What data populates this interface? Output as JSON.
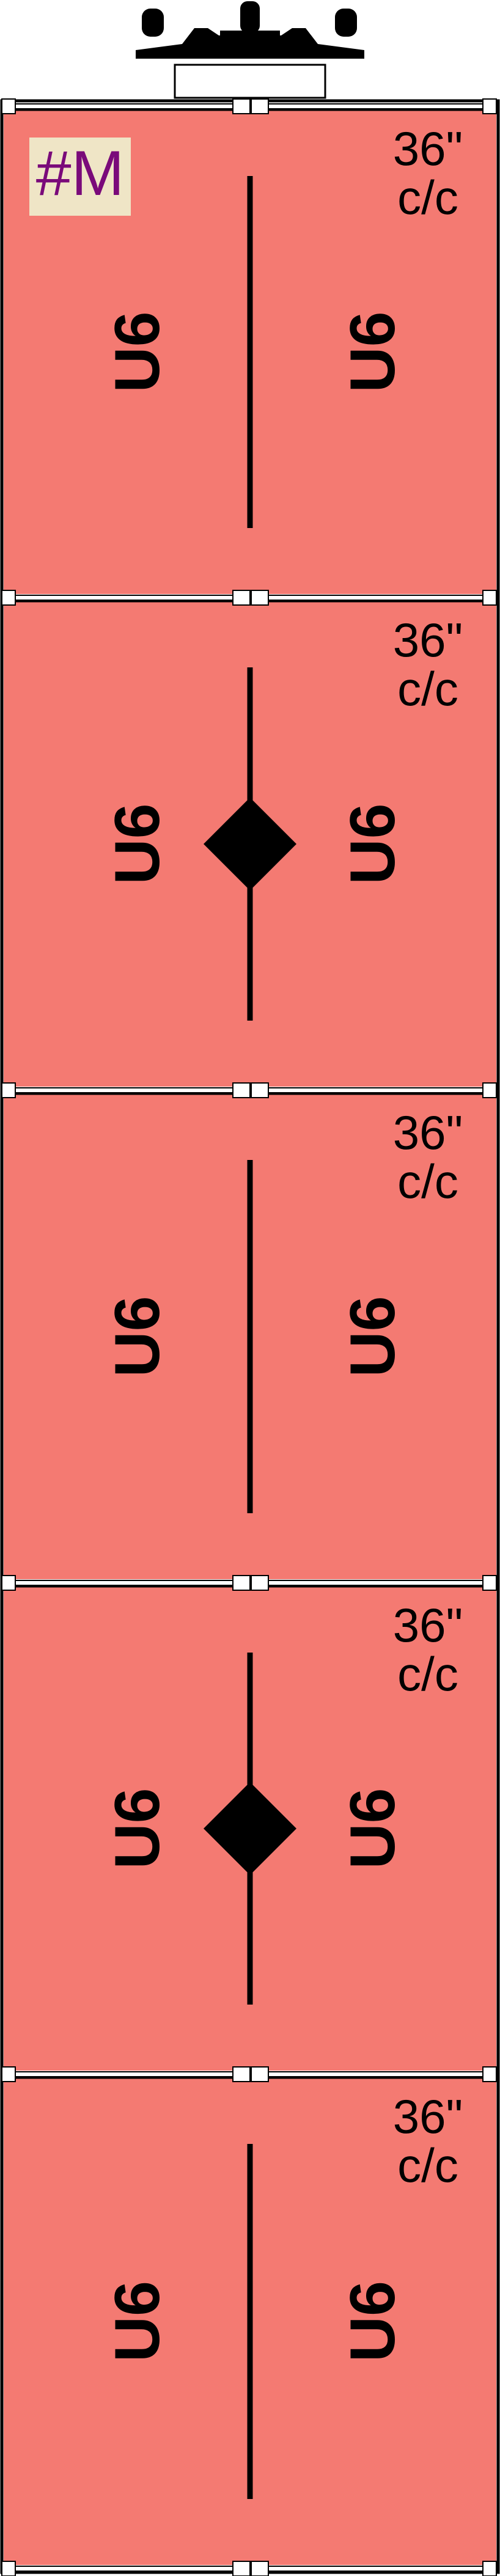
{
  "diagram": {
    "marker_label": "#M",
    "colors": {
      "panel_fill": "#f47a72",
      "outline": "#000000",
      "marker_fill": "#efe5c6",
      "marker_text": "#7a0a7a",
      "divider_fill": "#ffffff"
    },
    "panels": [
      {
        "spacing_line1": "36\"",
        "spacing_line2": "c/c",
        "left_label": "U6",
        "right_label": "U6",
        "center_symbol": "none"
      },
      {
        "spacing_line1": "36\"",
        "spacing_line2": "c/c",
        "left_label": "U6",
        "right_label": "U6",
        "center_symbol": "diamond"
      },
      {
        "spacing_line1": "36\"",
        "spacing_line2": "c/c",
        "left_label": "U6",
        "right_label": "U6",
        "center_symbol": "none"
      },
      {
        "spacing_line1": "36\"",
        "spacing_line2": "c/c",
        "left_label": "U6",
        "right_label": "U6",
        "center_symbol": "diamond"
      },
      {
        "spacing_line1": "36\"",
        "spacing_line2": "c/c",
        "left_label": "U6",
        "right_label": "U6",
        "center_symbol": "none"
      }
    ]
  }
}
